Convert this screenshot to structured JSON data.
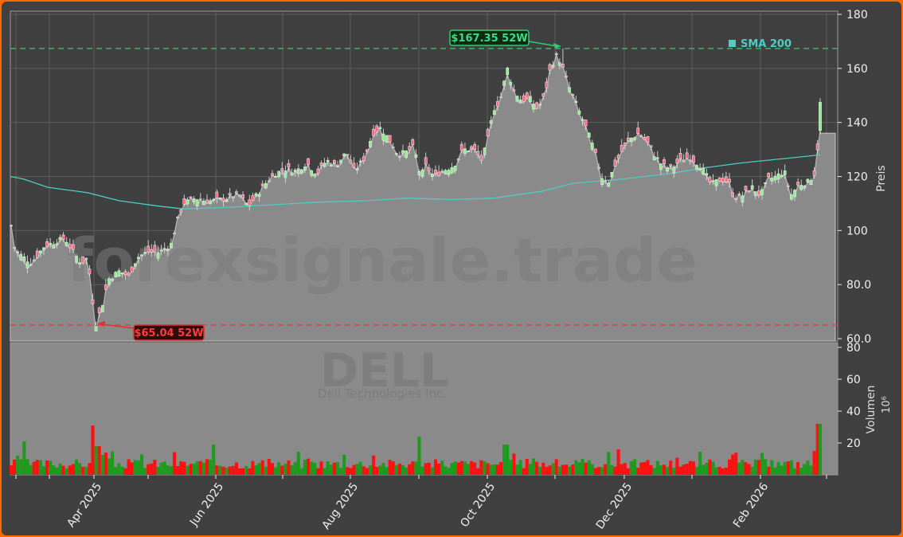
{
  "chart_data": {
    "type": "candlestick",
    "ticker": "DELL",
    "company": "Dell Technologies Inc.",
    "watermark": "forexsignale.trade",
    "price_panel": {
      "ylabel": "Preis",
      "ylim": [
        60,
        180
      ],
      "yticks": [
        "60.0",
        "80.0",
        "100",
        "120",
        "140",
        "160",
        "180"
      ],
      "grid": true
    },
    "volume_panel": {
      "ylabel": "Volumen",
      "yunit": "10⁶",
      "ylim": [
        0,
        80
      ],
      "yticks": [
        "20",
        "40",
        "60",
        "80"
      ]
    },
    "xticks": [
      "Apr 2025",
      "Jun 2025",
      "Aug 2025",
      "Oct 2025",
      "Dec 2025",
      "Feb 2026"
    ],
    "annotations": {
      "high_52w": {
        "label": "$167.35 52W",
        "value": 167.35,
        "color": "#2ecc71"
      },
      "low_52w": {
        "label": "$65.04 52W",
        "value": 65.04,
        "color": "#e03030"
      }
    },
    "legend": [
      {
        "name": "SMA 200",
        "color": "#4ecdc4"
      }
    ],
    "close_series_approx": {
      "x": [
        "Mar 2025",
        "Apr 2025 early",
        "Apr 2025 low",
        "May 2025",
        "Jun 2025",
        "Jul 2025",
        "Aug 2025",
        "Sep 2025",
        "Oct 2025",
        "Nov 2025 peak",
        "Dec 2025",
        "Jan 2026",
        "Feb 2026",
        "Mar 2026 last"
      ],
      "values": [
        105,
        92,
        65.04,
        92,
        110,
        124,
        138,
        125,
        155,
        165,
        120,
        113,
        120,
        147
      ]
    },
    "sma200_approx": {
      "x": [
        "Mar 2025",
        "Apr 2025",
        "Jun 2025",
        "Aug 2025",
        "Oct 2025",
        "Dec 2025",
        "Feb 2026"
      ],
      "values": [
        120,
        115,
        108,
        111,
        112,
        119,
        128
      ]
    },
    "volume_approx_millions": {
      "peaks": [
        {
          "date": "Apr 2025",
          "value": 31
        },
        {
          "date": "Jun 2025",
          "value": 19
        },
        {
          "date": "Aug 2025",
          "value": 24
        },
        {
          "date": "Oct 2025",
          "value": 19
        },
        {
          "date": "Nov 2025",
          "value": 16
        },
        {
          "date": "Mar 2026",
          "value": 32
        }
      ],
      "typical": 7
    },
    "colors": {
      "up": "#90ee90",
      "down": "#ff6680",
      "vol_up": "#1e9a1e",
      "vol_down": "#ff1010",
      "area": "#8a8a8a",
      "sma": "#4ecdc4",
      "background": "#404040"
    }
  }
}
